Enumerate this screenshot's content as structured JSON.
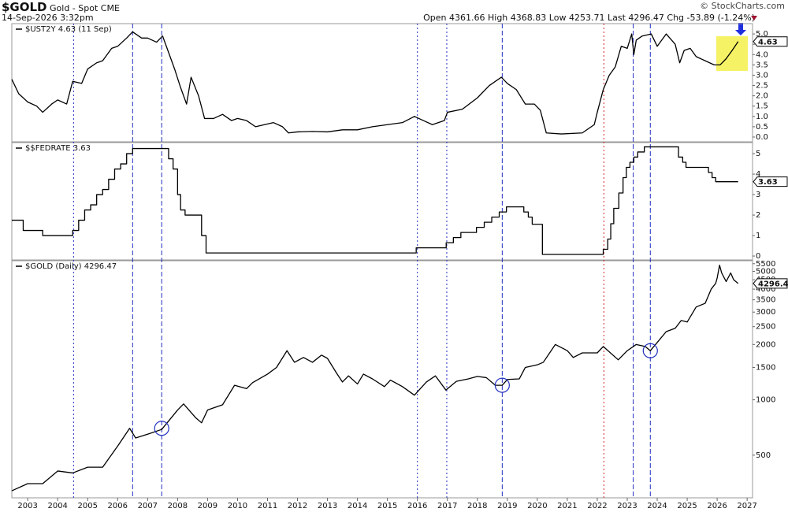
{
  "header": {
    "symbol": "$GOLD",
    "name": "Gold - Spot",
    "exchange": "CME",
    "timestamp": "14-Sep-2026 3:32pm",
    "open_label": "Open",
    "open": 4361.66,
    "high_label": "High",
    "high": 4368.83,
    "low_label": "Low",
    "low": 4253.71,
    "last_label": "Last",
    "last": 4296.47,
    "chg_label": "Chg",
    "chg": -53.89,
    "chg_pct": "(-1.24%)",
    "brand": "© StockCharts.com"
  },
  "markers": [
    {
      "x": 2004.53,
      "color": "#1f2fc0",
      "dash": "dotted"
    },
    {
      "x": 2006.5,
      "color": "#1f2fc0",
      "dash": "dashed"
    },
    {
      "x": 2007.47,
      "color": "#1f2fc0",
      "dash": "dashed"
    },
    {
      "x": 2016.0,
      "color": "#1f2fc0",
      "dash": "dotted"
    },
    {
      "x": 2016.98,
      "color": "#1f2fc0",
      "dash": "dotted"
    },
    {
      "x": 2018.83,
      "color": "#1f2fc0",
      "dash": "dashed"
    },
    {
      "x": 2022.22,
      "color": "#d02020",
      "dash": "dotted"
    },
    {
      "x": 2023.2,
      "color": "#1f2fc0",
      "dash": "dashed"
    },
    {
      "x": 2023.77,
      "color": "#1f2fc0",
      "dash": "dashed"
    }
  ],
  "chart_data": [
    {
      "type": "line",
      "title": "$UST2Y 4.63 (11 Sep)",
      "last": 4.63,
      "xlim": [
        2002.47,
        2027.18
      ],
      "ylim": [
        -0.23,
        5.5
      ],
      "yticks": [
        {
          "value": 0,
          "label": "0.0"
        },
        0.5,
        {
          "value": 1,
          "label": "1.0"
        },
        1.5,
        {
          "value": 2,
          "label": "2.0"
        },
        2.5,
        {
          "value": 3,
          "label": "3.0"
        },
        3.5,
        {
          "value": 4,
          "label": "4.0"
        },
        4.5,
        {
          "value": 5,
          "label": "5.0"
        }
      ],
      "series": [
        {
          "color": "#000000",
          "x": [
            2002.47,
            2002.7,
            2003.0,
            2003.3,
            2003.5,
            2003.8,
            2004.0,
            2004.3,
            2004.5,
            2004.8,
            2005.0,
            2005.3,
            2005.5,
            2005.8,
            2006.0,
            2006.3,
            2006.5,
            2006.8,
            2007.0,
            2007.3,
            2007.5,
            2007.7,
            2007.9,
            2008.1,
            2008.3,
            2008.45,
            2008.7,
            2008.9,
            2009.2,
            2009.5,
            2009.8,
            2010.0,
            2010.3,
            2010.6,
            2010.9,
            2011.2,
            2011.5,
            2011.7,
            2012.0,
            2012.5,
            2013.0,
            2013.5,
            2014.0,
            2014.5,
            2015.0,
            2015.5,
            2015.9,
            2016.2,
            2016.5,
            2016.9,
            2017.0,
            2017.5,
            2018.0,
            2018.4,
            2018.8,
            2019.0,
            2019.3,
            2019.6,
            2019.9,
            2020.1,
            2020.3,
            2020.8,
            2021.5,
            2021.9,
            2022.0,
            2022.2,
            2022.4,
            2022.6,
            2022.8,
            2023.0,
            2023.15,
            2023.22,
            2023.3,
            2023.5,
            2023.8,
            2024.0,
            2024.3,
            2024.6,
            2024.75,
            2024.9,
            2025.1,
            2025.3,
            2025.6,
            2025.9,
            2026.1,
            2026.3,
            2026.5,
            2026.7
          ],
          "values": [
            2.8,
            2.1,
            1.7,
            1.5,
            1.2,
            1.6,
            1.8,
            1.6,
            2.7,
            2.6,
            3.3,
            3.6,
            3.7,
            4.3,
            4.4,
            4.8,
            5.1,
            4.8,
            4.8,
            4.6,
            4.9,
            4.1,
            3.3,
            2.4,
            1.6,
            2.9,
            2.0,
            0.9,
            0.9,
            1.1,
            0.8,
            0.9,
            0.8,
            0.5,
            0.6,
            0.7,
            0.5,
            0.2,
            0.25,
            0.27,
            0.25,
            0.35,
            0.35,
            0.5,
            0.6,
            0.7,
            1.0,
            0.8,
            0.6,
            0.8,
            1.2,
            1.35,
            1.9,
            2.5,
            2.9,
            2.6,
            2.3,
            1.6,
            1.6,
            1.3,
            0.2,
            0.15,
            0.2,
            0.6,
            1.2,
            2.3,
            3.0,
            3.4,
            4.4,
            4.3,
            5.0,
            4.0,
            4.7,
            4.9,
            5.0,
            4.4,
            5.0,
            4.5,
            3.6,
            4.2,
            4.3,
            3.9,
            3.7,
            3.5,
            3.5,
            3.8,
            4.2,
            4.63
          ]
        }
      ]
    },
    {
      "type": "line",
      "step": true,
      "title": "$$FEDRATE 3.63",
      "last": 3.63,
      "xlim": [
        2002.47,
        2027.18
      ],
      "ylim": [
        -0.19,
        5.54
      ],
      "yticks": [
        0,
        1,
        2,
        3,
        4,
        5
      ],
      "series": [
        {
          "color": "#000000",
          "x": [
            2002.47,
            2002.85,
            2003.5,
            2004.5,
            2004.7,
            2004.9,
            2005.1,
            2005.3,
            2005.5,
            2005.7,
            2005.9,
            2006.1,
            2006.3,
            2006.5,
            2007.7,
            2007.85,
            2008.0,
            2008.1,
            2008.25,
            2008.8,
            2008.95,
            2015.96,
            2016.96,
            2017.2,
            2017.45,
            2017.97,
            2018.23,
            2018.48,
            2018.73,
            2018.97,
            2019.55,
            2019.7,
            2019.83,
            2020.17,
            2022.2,
            2022.35,
            2022.45,
            2022.55,
            2022.72,
            2022.86,
            2022.97,
            2023.09,
            2023.22,
            2023.35,
            2023.57,
            2024.71,
            2024.85,
            2024.96,
            2025.71,
            2025.83,
            2025.95,
            2026.7
          ],
          "values": [
            1.75,
            1.25,
            1.0,
            1.25,
            1.75,
            2.25,
            2.5,
            3.0,
            3.25,
            3.75,
            4.25,
            4.5,
            5.0,
            5.25,
            4.75,
            4.25,
            3.0,
            2.25,
            2.0,
            1.0,
            0.15,
            0.4,
            0.65,
            0.9,
            1.15,
            1.4,
            1.65,
            1.9,
            2.15,
            2.4,
            2.15,
            1.9,
            1.55,
            0.08,
            0.33,
            0.83,
            1.58,
            2.33,
            3.08,
            3.83,
            4.33,
            4.58,
            4.83,
            5.08,
            5.33,
            4.83,
            4.58,
            4.33,
            4.08,
            3.83,
            3.63,
            3.63
          ]
        }
      ]
    },
    {
      "type": "line",
      "log": true,
      "title": "$GOLD (Daily) 4296.47",
      "last": 4296.47,
      "xlim": [
        2002.47,
        2027.18
      ],
      "ylim": [
        293,
        5710
      ],
      "yticks": [
        500,
        1000,
        1500,
        2000,
        2500,
        3000,
        3500,
        4000,
        4500,
        5000,
        5500
      ],
      "xticks": [
        2003,
        2004,
        2005,
        2006,
        2007,
        2008,
        2009,
        2010,
        2011,
        2012,
        2013,
        2014,
        2015,
        2016,
        2017,
        2018,
        2019,
        2020,
        2021,
        2022,
        2023,
        2024,
        2025,
        2026,
        2027
      ],
      "circles": [
        {
          "x": 2007.47,
          "y": 700
        },
        {
          "x": 2018.83,
          "y": 1200
        },
        {
          "x": 2023.77,
          "y": 1850
        }
      ],
      "series": [
        {
          "color": "#000000",
          "x": [
            2002.47,
            2003.0,
            2003.5,
            2004.0,
            2004.5,
            2005.0,
            2005.5,
            2006.0,
            2006.4,
            2006.6,
            2007.0,
            2007.47,
            2008.0,
            2008.2,
            2008.6,
            2008.8,
            2009.0,
            2009.5,
            2009.9,
            2010.3,
            2010.5,
            2011.0,
            2011.3,
            2011.65,
            2011.9,
            2012.2,
            2012.5,
            2012.8,
            2013.0,
            2013.3,
            2013.5,
            2013.7,
            2014.0,
            2014.2,
            2014.5,
            2014.9,
            2015.1,
            2015.5,
            2015.9,
            2016.3,
            2016.6,
            2016.95,
            2017.3,
            2017.7,
            2018.0,
            2018.3,
            2018.6,
            2018.83,
            2019.0,
            2019.4,
            2019.6,
            2020.0,
            2020.2,
            2020.6,
            2021.0,
            2021.2,
            2021.5,
            2022.0,
            2022.2,
            2022.7,
            2023.0,
            2023.3,
            2023.6,
            2023.77,
            2024.0,
            2024.3,
            2024.6,
            2024.8,
            2025.0,
            2025.3,
            2025.6,
            2025.8,
            2025.95,
            2026.0,
            2026.08,
            2026.15,
            2026.3,
            2026.45,
            2026.55,
            2026.7
          ],
          "values": [
            320,
            350,
            350,
            410,
            400,
            430,
            430,
            560,
            700,
            620,
            650,
            690,
            880,
            950,
            800,
            750,
            880,
            940,
            1200,
            1150,
            1240,
            1380,
            1500,
            1850,
            1600,
            1700,
            1600,
            1750,
            1680,
            1400,
            1250,
            1350,
            1220,
            1380,
            1300,
            1180,
            1280,
            1180,
            1060,
            1250,
            1350,
            1130,
            1260,
            1300,
            1340,
            1320,
            1200,
            1200,
            1290,
            1300,
            1500,
            1550,
            1600,
            2000,
            1850,
            1700,
            1800,
            1800,
            1950,
            1650,
            1850,
            2000,
            1950,
            1850,
            2050,
            2350,
            2450,
            2700,
            2650,
            3200,
            3350,
            4000,
            4300,
            4600,
            5400,
            4900,
            4400,
            4900,
            4500,
            4296.47
          ]
        }
      ]
    }
  ]
}
